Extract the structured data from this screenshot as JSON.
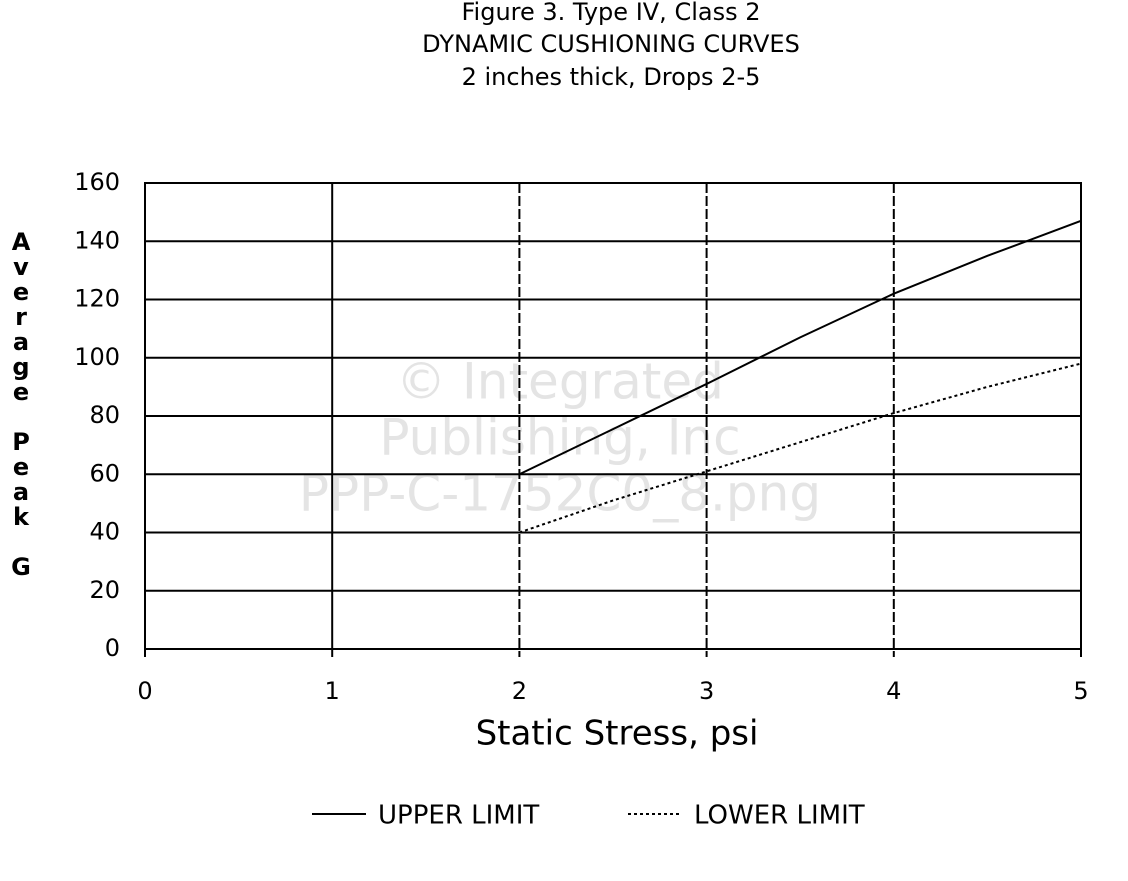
{
  "chart_data": {
    "type": "line",
    "title": "Figure 3.  Type IV, Class 2",
    "subtitle": [
      "DYNAMIC CUSHIONING CURVES",
      "2 inches thick, Drops 2-5"
    ],
    "x_label": "Static Stress, psi",
    "y_label": "Average Peak G",
    "watermark": [
      "© Integrated",
      "Publishing, Inc",
      "PPP-C-1752C0_8.png"
    ],
    "x": [
      2,
      2.5,
      3,
      3.5,
      4,
      4.5,
      5
    ],
    "series": [
      {
        "name": "UPPER LIMIT",
        "color": "#000000",
        "style": "solid",
        "values": [
          60,
          75.5,
          91,
          107,
          122,
          135,
          147
        ]
      },
      {
        "name": "LOWER LIMIT",
        "color": "#000000",
        "style": "dotted",
        "values": [
          40,
          51,
          61,
          71,
          81,
          90,
          98
        ]
      }
    ],
    "xlim": [
      0,
      5
    ],
    "xticks": [
      0,
      1,
      2,
      3,
      4,
      5
    ],
    "ylim": [
      0,
      160
    ],
    "yticks": [
      0,
      20,
      40,
      60,
      80,
      100,
      120,
      140,
      160
    ],
    "grid": true,
    "legend": "bottom"
  }
}
